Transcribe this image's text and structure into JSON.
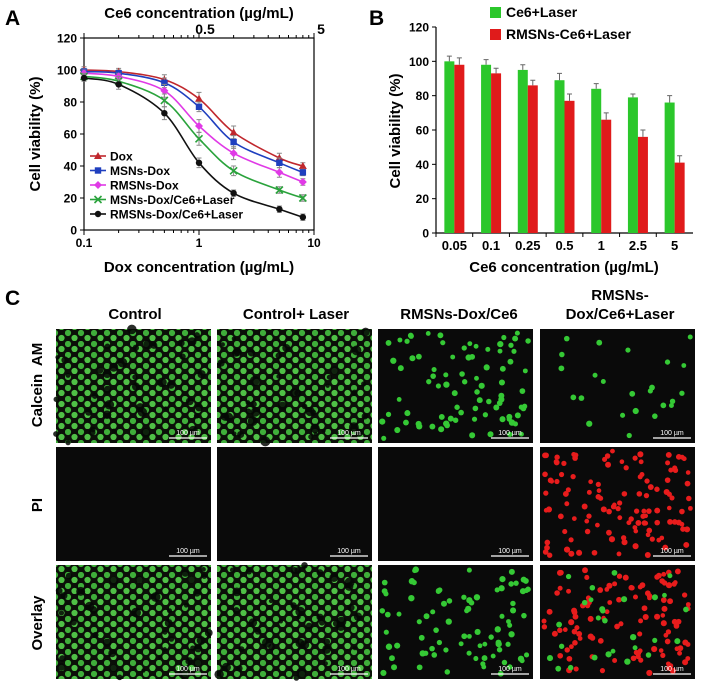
{
  "panels": {
    "a": "A",
    "b": "B",
    "c": "C"
  },
  "chart_data": [
    {
      "type": "line",
      "title": "",
      "top_axis_label": "Ce6 concentration (µg/mL)",
      "top_ticks": [
        "0.5",
        "5"
      ],
      "xlabel": "Dox concentration (µg/mL)",
      "ylabel": "Cell viability (%)",
      "xscale": "log",
      "x": [
        0.1,
        0.2,
        0.5,
        1,
        2,
        5,
        8
      ],
      "xlim": [
        0.1,
        10
      ],
      "ylim": [
        0,
        120
      ],
      "xticks": [
        "0.1",
        "1",
        "10"
      ],
      "yticks": [
        "0",
        "20",
        "40",
        "60",
        "80",
        "100",
        "120"
      ],
      "legend_position": "lower-left",
      "series": [
        {
          "name": "Dox",
          "marker": "triangle",
          "color": "#c0272d",
          "values": [
            100,
            99,
            94,
            82,
            61,
            45,
            40
          ],
          "errors": [
            2,
            2,
            3,
            4,
            4,
            3,
            2
          ]
        },
        {
          "name": "MSNs-Dox",
          "marker": "square",
          "color": "#1f3fbf",
          "values": [
            99,
            98,
            92,
            77,
            55,
            42,
            36
          ],
          "errors": [
            2,
            2,
            3,
            3,
            4,
            3,
            2
          ]
        },
        {
          "name": "RMSNs-Dox",
          "marker": "diamond",
          "color": "#e03ae6",
          "values": [
            98,
            96,
            87,
            65,
            48,
            36,
            30
          ],
          "errors": [
            2,
            2,
            4,
            4,
            4,
            3,
            2
          ]
        },
        {
          "name": "MSNs-Dox/Ce6+Laser",
          "marker": "x",
          "color": "#2aa33c",
          "values": [
            96,
            93,
            81,
            57,
            37,
            25,
            20
          ],
          "errors": [
            2,
            3,
            4,
            4,
            3,
            2,
            2
          ]
        },
        {
          "name": "RMSNs-Dox/Ce6+Laser",
          "marker": "circle",
          "color": "#111111",
          "values": [
            95,
            91,
            73,
            42,
            23,
            13,
            8
          ],
          "errors": [
            2,
            3,
            4,
            3,
            2,
            2,
            2
          ]
        }
      ]
    },
    {
      "type": "bar",
      "title": "",
      "xlabel": "Ce6 concentration (µg/mL)",
      "ylabel": "Cell viability (%)",
      "categories": [
        "0.05",
        "0.1",
        "0.25",
        "0.5",
        "1",
        "2.5",
        "5"
      ],
      "ylim": [
        0,
        120
      ],
      "yticks": [
        "0",
        "20",
        "40",
        "60",
        "80",
        "100",
        "120"
      ],
      "legend_position": "top-right",
      "series": [
        {
          "name": "Ce6+Laser",
          "color": "#2bc72b",
          "values": [
            100,
            98,
            95,
            89,
            84,
            79,
            76
          ],
          "errors": [
            3,
            3,
            3,
            4,
            3,
            2,
            4
          ]
        },
        {
          "name": "RMSNs-Ce6+Laser",
          "color": "#e01b1b",
          "values": [
            98,
            93,
            86,
            77,
            66,
            56,
            41
          ],
          "errors": [
            4,
            3,
            3,
            4,
            4,
            4,
            4
          ]
        }
      ]
    }
  ],
  "microscopy": {
    "columns": [
      "Control",
      "Control+ Laser",
      "RMSNs-Dox/Ce6",
      "RMSNs-",
      "Dox/Ce6+Laser"
    ],
    "rows": [
      "Calcein  AM",
      "PI",
      "Overlay"
    ],
    "scale_bar": "100 µm",
    "channel_colors": {
      "live": "#35c935",
      "dead": "#e81c1c",
      "background": "#0a0a0a"
    }
  }
}
